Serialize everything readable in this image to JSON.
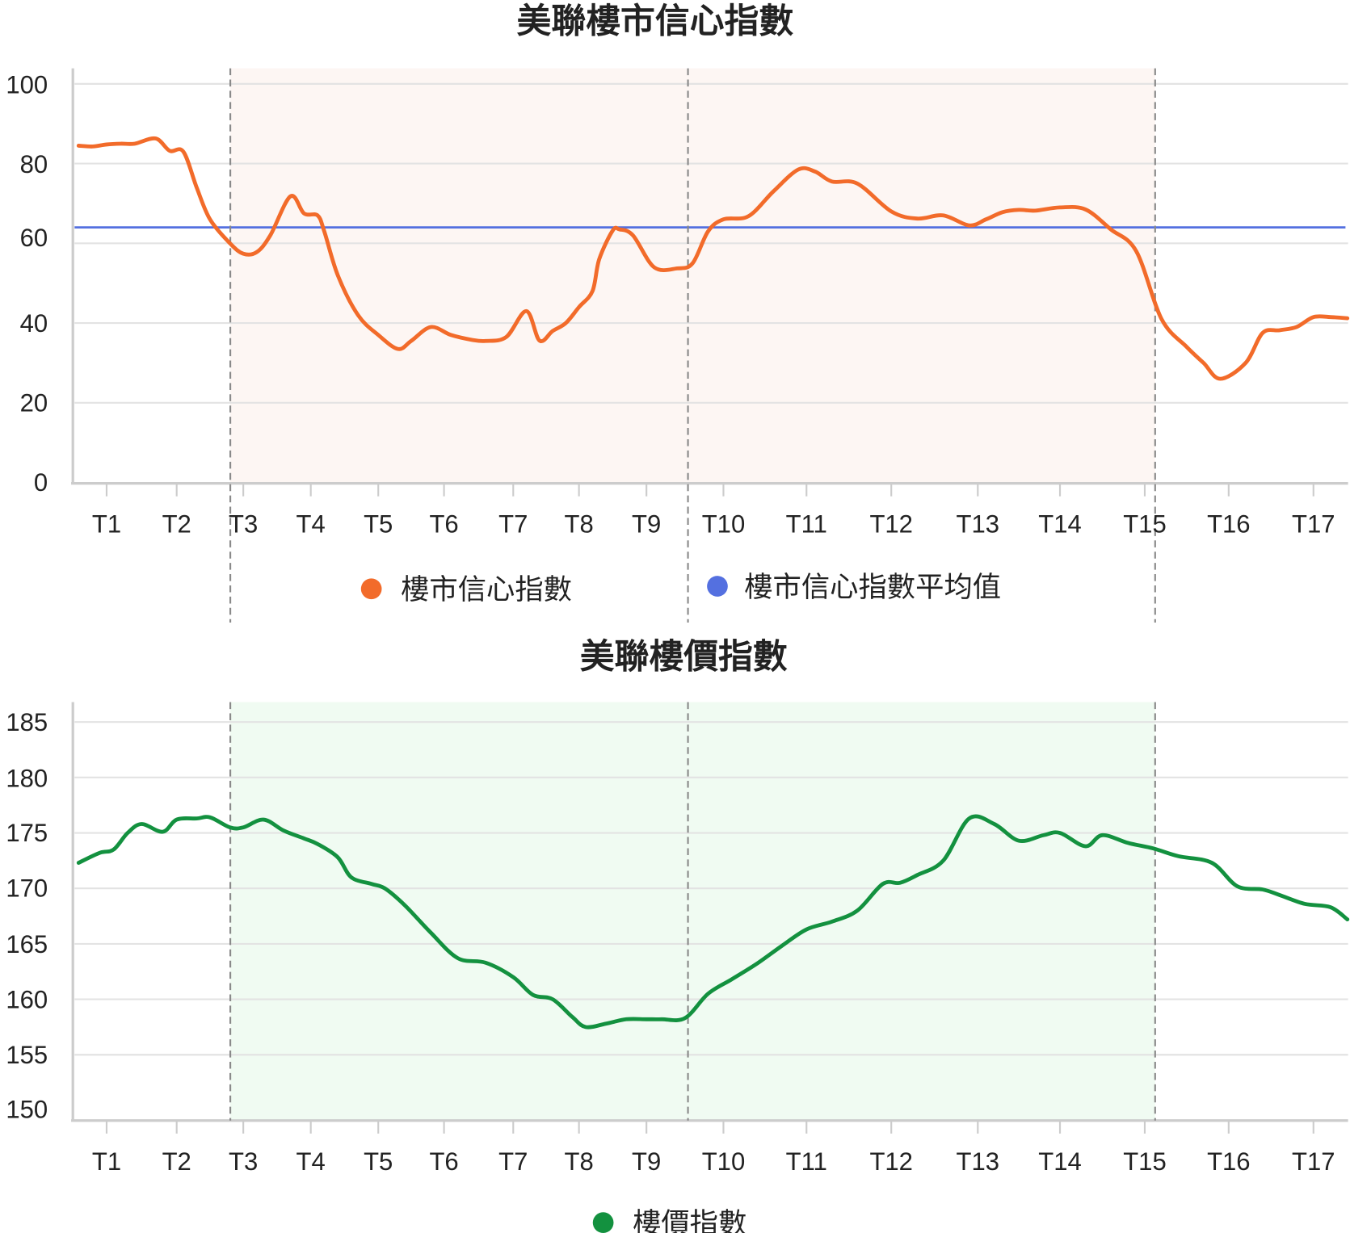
{
  "chart_data": [
    {
      "type": "line",
      "title": "美聯樓市信心指數",
      "xlabel": "",
      "ylabel": "",
      "categories": [
        "T1",
        "T2",
        "T3",
        "T4",
        "T5",
        "T6",
        "T7",
        "T8",
        "T9",
        "T10",
        "T11",
        "T12",
        "T13",
        "T14",
        "T15",
        "T16",
        "T17"
      ],
      "ylim": [
        0,
        100
      ],
      "yticks": [
        0,
        20,
        40,
        60,
        80,
        100
      ],
      "grid": true,
      "legend_position": "bottom",
      "series": [
        {
          "name": "樓市信心指數",
          "color": "#F26B2A",
          "x": [
            0.6,
            0.8,
            1.0,
            1.2,
            1.4,
            1.7,
            1.9,
            2.1,
            2.3,
            2.5,
            2.8,
            3.0,
            3.2,
            3.4,
            3.7,
            3.9,
            4.1,
            4.2,
            4.4,
            4.7,
            5.0,
            5.3,
            5.5,
            5.8,
            6.1,
            6.4,
            6.6,
            6.9,
            7.2,
            7.4,
            7.6,
            7.8,
            8.0,
            8.2,
            8.3,
            8.5,
            8.6,
            8.8,
            9.1,
            9.4,
            9.6,
            9.8,
            10.0,
            10.3,
            10.6,
            10.9,
            11.1,
            11.3,
            11.6,
            12.0,
            12.3,
            12.6,
            12.9,
            13.1,
            13.3,
            13.5,
            13.7,
            14.0,
            14.3,
            14.6,
            14.9,
            15.2,
            15.5,
            15.7,
            15.9,
            16.2,
            16.4,
            16.6,
            16.8,
            17.0,
            17.2,
            17.4
          ],
          "values": [
            84.5,
            84.3,
            84.8,
            85.0,
            85.0,
            86.3,
            83.2,
            83.0,
            74,
            66,
            60,
            57.4,
            57.8,
            62,
            71.8,
            67.5,
            67,
            63,
            52,
            42,
            37,
            33.5,
            35.5,
            39,
            37,
            35.8,
            35.5,
            36.5,
            43,
            35.6,
            38,
            40,
            44,
            48,
            56,
            63.2,
            63.5,
            62,
            54,
            53.7,
            55,
            63,
            66,
            66.8,
            73,
            78.5,
            78,
            75.5,
            75,
            68,
            66.2,
            67,
            64.5,
            66,
            67.8,
            68.4,
            68.2,
            69,
            68.5,
            63.5,
            58,
            41,
            34,
            30,
            26,
            30,
            37.5,
            38.2,
            39,
            41.5,
            41.5,
            41.2
          ]
        },
        {
          "name": "樓市信心指數平均值",
          "color": "#5470E0",
          "constant": 63.3
        }
      ],
      "highlight_regions": [
        {
          "x_start": 2.8,
          "x_end": 15.2,
          "color": "#FDF6F3"
        }
      ],
      "vertical_markers": [
        2.8,
        9.6,
        15.2
      ]
    },
    {
      "type": "line",
      "title": "美聯樓價指數",
      "xlabel": "",
      "ylabel": "",
      "categories": [
        "T1",
        "T2",
        "T3",
        "T4",
        "T5",
        "T6",
        "T7",
        "T8",
        "T9",
        "T10",
        "T11",
        "T12",
        "T13",
        "T14",
        "T15",
        "T16",
        "T17"
      ],
      "ylim": [
        150,
        185
      ],
      "yticks": [
        150,
        155,
        160,
        165,
        170,
        175,
        180,
        185
      ],
      "grid": true,
      "legend_position": "bottom",
      "series": [
        {
          "name": "樓價指數",
          "color": "#13913F",
          "x": [
            0.6,
            0.9,
            1.1,
            1.3,
            1.5,
            1.8,
            2.0,
            2.3,
            2.5,
            2.8,
            3.0,
            3.3,
            3.6,
            3.9,
            4.1,
            4.4,
            4.6,
            4.9,
            5.1,
            5.4,
            5.8,
            6.2,
            6.6,
            7.0,
            7.3,
            7.6,
            7.9,
            8.1,
            8.4,
            8.7,
            9.0,
            9.2,
            9.5,
            9.8,
            10.1,
            10.4,
            10.7,
            11.0,
            11.3,
            11.6,
            11.9,
            12.1,
            12.3,
            12.6,
            12.9,
            13.2,
            13.5,
            13.8,
            14.0,
            14.3,
            14.5,
            14.8,
            15.1,
            15.4,
            15.8,
            16.1,
            16.4,
            16.6,
            16.9,
            17.2,
            17.4
          ],
          "values": [
            172.3,
            173.2,
            173.5,
            175.0,
            175.8,
            175.1,
            176.2,
            176.3,
            176.4,
            175.5,
            175.5,
            176.2,
            175.2,
            174.5,
            174.0,
            172.8,
            171.0,
            170.4,
            170.0,
            168.5,
            166.0,
            163.7,
            163.3,
            162.0,
            160.4,
            160.0,
            158.4,
            157.5,
            157.8,
            158.2,
            158.2,
            158.2,
            158.3,
            160.5,
            161.8,
            163.2,
            164.8,
            166.3,
            167.0,
            168.0,
            170.4,
            170.5,
            171.2,
            172.5,
            176.3,
            175.8,
            174.3,
            174.8,
            175.0,
            173.8,
            174.8,
            174.1,
            173.6,
            172.9,
            172.3,
            170.2,
            169.9,
            169.4,
            168.6,
            168.3,
            167.2
          ]
        }
      ],
      "highlight_regions": [
        {
          "x_start": 2.8,
          "x_end": 15.2,
          "color": "#F0FBF2"
        }
      ],
      "vertical_markers": [
        2.8,
        9.6,
        15.2
      ]
    }
  ],
  "charts": {
    "top": {
      "title": "美聯樓市信心指數",
      "yticks": [
        "100",
        "80",
        "60",
        "40",
        "20",
        "0"
      ],
      "xticks": [
        "T1",
        "T2",
        "T3",
        "T4",
        "T5",
        "T6",
        "T7",
        "T8",
        "T9",
        "T10",
        "T11",
        "T12",
        "T13",
        "T14",
        "T15",
        "T16",
        "T17"
      ],
      "legend": [
        {
          "label": "樓市信心指數",
          "color": "#F26B2A"
        },
        {
          "label": "樓市信心指數平均值",
          "color": "#5470E0"
        }
      ]
    },
    "bottom": {
      "title": "美聯樓價指數",
      "yticks": [
        "185",
        "180",
        "175",
        "170",
        "165",
        "160",
        "155",
        "150"
      ],
      "xticks": [
        "T1",
        "T2",
        "T3",
        "T4",
        "T5",
        "T6",
        "T7",
        "T8",
        "T9",
        "T10",
        "T11",
        "T12",
        "T13",
        "T14",
        "T15",
        "T16",
        "T17"
      ],
      "legend": [
        {
          "label": "樓價指數",
          "color": "#13913F"
        }
      ]
    }
  }
}
